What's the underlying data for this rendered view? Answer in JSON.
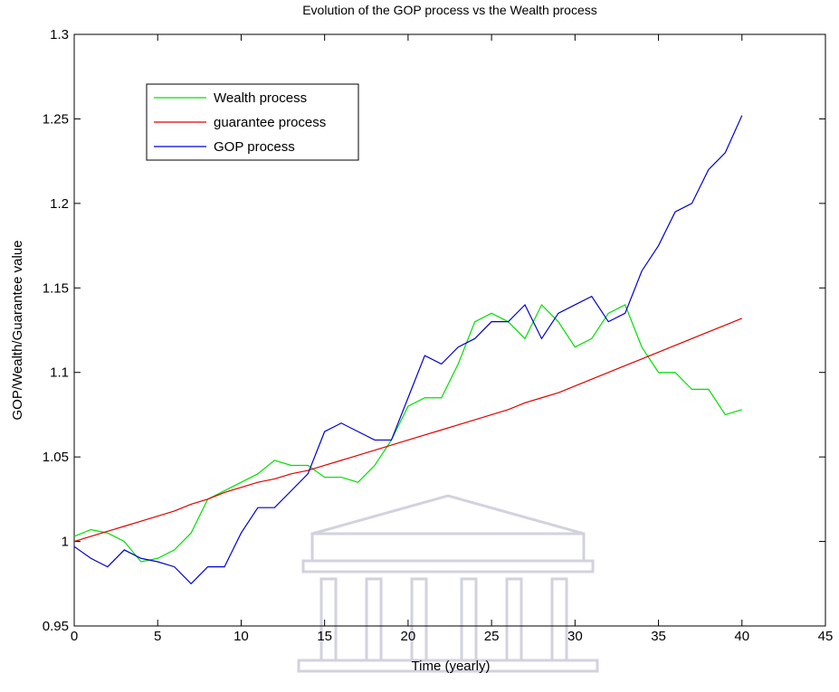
{
  "chart_data": {
    "type": "line",
    "title": "Evolution of the GOP process vs the Wealth process",
    "x_label": "Time (yearly)",
    "y_label": "GOP/Wealth/Guarantee value",
    "x": [
      0,
      1,
      2,
      3,
      4,
      5,
      6,
      7,
      8,
      9,
      10,
      11,
      12,
      13,
      14,
      15,
      16,
      17,
      18,
      19,
      20,
      21,
      22,
      23,
      24,
      25,
      26,
      27,
      28,
      29,
      30,
      31,
      32,
      33,
      34,
      35,
      36,
      37,
      38,
      39,
      40
    ],
    "series": [
      {
        "name": "Wealth process",
        "color": "#00e000",
        "values": [
          1.003,
          1.007,
          1.005,
          1.0,
          0.988,
          0.99,
          0.995,
          1.005,
          1.025,
          1.03,
          1.035,
          1.04,
          1.048,
          1.045,
          1.045,
          1.038,
          1.038,
          1.035,
          1.045,
          1.06,
          1.08,
          1.085,
          1.085,
          1.105,
          1.13,
          1.135,
          1.13,
          1.12,
          1.14,
          1.13,
          1.115,
          1.12,
          1.135,
          1.14,
          1.115,
          1.1,
          1.1,
          1.09,
          1.09,
          1.075,
          1.078
        ]
      },
      {
        "name": "guarantee process",
        "color": "#e00000",
        "values": [
          1.0,
          1.003,
          1.006,
          1.009,
          1.012,
          1.015,
          1.018,
          1.022,
          1.025,
          1.029,
          1.032,
          1.035,
          1.037,
          1.04,
          1.042,
          1.045,
          1.048,
          1.051,
          1.054,
          1.057,
          1.06,
          1.063,
          1.066,
          1.069,
          1.072,
          1.075,
          1.078,
          1.082,
          1.085,
          1.088,
          1.092,
          1.096,
          1.1,
          1.104,
          1.108,
          1.112,
          1.116,
          1.12,
          1.124,
          1.128,
          1.132
        ]
      },
      {
        "name": "GOP process",
        "color": "#0000d0",
        "values": [
          0.997,
          0.99,
          0.985,
          0.995,
          0.99,
          0.988,
          0.985,
          0.975,
          0.985,
          0.985,
          1.005,
          1.02,
          1.02,
          1.03,
          1.04,
          1.065,
          1.07,
          1.065,
          1.06,
          1.06,
          1.085,
          1.11,
          1.105,
          1.115,
          1.12,
          1.13,
          1.13,
          1.14,
          1.12,
          1.135,
          1.14,
          1.145,
          1.13,
          1.135,
          1.16,
          1.175,
          1.195,
          1.2,
          1.22,
          1.23,
          1.252
        ]
      }
    ],
    "xlim": [
      0,
      45
    ],
    "xticks": [
      0,
      5,
      10,
      15,
      20,
      25,
      30,
      35,
      40,
      45
    ],
    "ylim": [
      0.95,
      1.3
    ],
    "yticks": [
      0.95,
      1,
      1.05,
      1.1,
      1.15,
      1.2,
      1.25,
      1.3
    ],
    "grid": false,
    "legend": "upper left"
  }
}
